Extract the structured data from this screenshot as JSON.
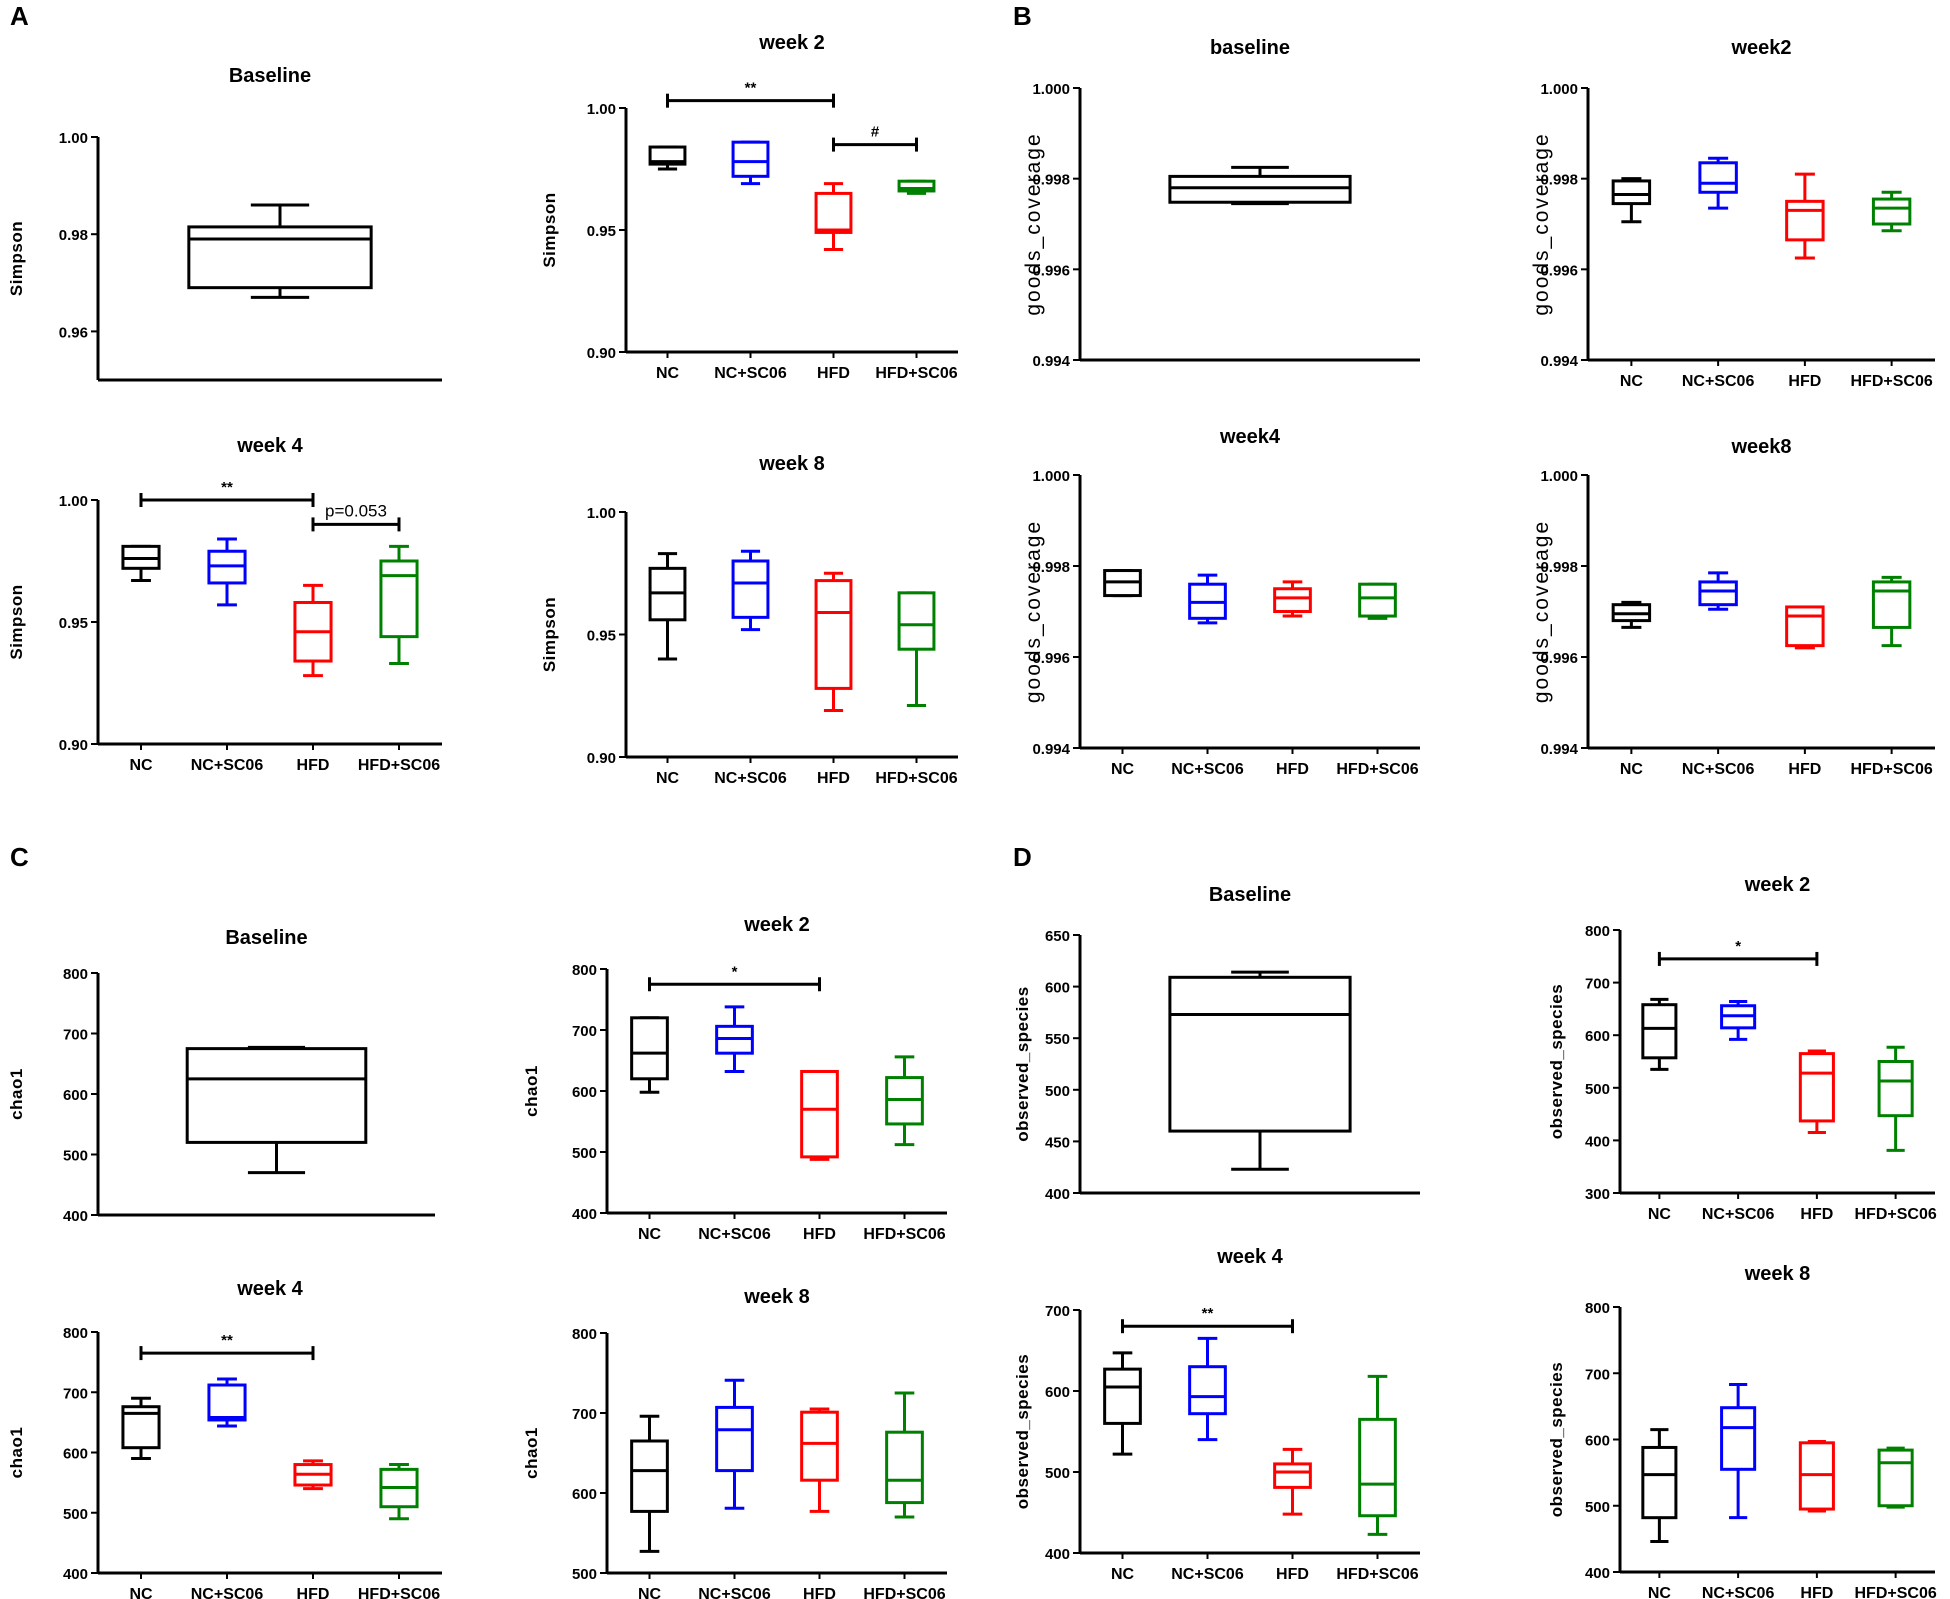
{
  "chart_data": [
    {
      "panel": "A",
      "title": "Baseline",
      "type": "box",
      "ylabel": "Simpson",
      "ylim": [
        0.95,
        1.0
      ],
      "yticks": [
        "0.96",
        "0.98",
        "1.00"
      ],
      "categories": [],
      "boxes": [
        {
          "group": "All",
          "min": 0.967,
          "q1": 0.969,
          "median": 0.979,
          "q3": 0.9815,
          "max": 0.986,
          "color": "#000000"
        }
      ],
      "annotations": []
    },
    {
      "panel": "A",
      "title": "week 2",
      "type": "box",
      "ylabel": "Simpson",
      "ylim": [
        0.9,
        1.0
      ],
      "yticks": [
        "0.90",
        "0.95",
        "1.00"
      ],
      "categories": [
        "NC",
        "NC+SC06",
        "HFD",
        "HFD+SC06"
      ],
      "boxes": [
        {
          "group": "NC",
          "min": 0.975,
          "q1": 0.977,
          "median": 0.978,
          "q3": 0.984,
          "max": 0.984,
          "color": "#000000"
        },
        {
          "group": "NC+SC06",
          "min": 0.969,
          "q1": 0.972,
          "median": 0.978,
          "q3": 0.986,
          "max": 0.986,
          "color": "#0000ff"
        },
        {
          "group": "HFD",
          "min": 0.942,
          "q1": 0.949,
          "median": 0.95,
          "q3": 0.965,
          "max": 0.969,
          "color": "#ff0000"
        },
        {
          "group": "HFD+SC06",
          "min": 0.965,
          "q1": 0.966,
          "median": 0.967,
          "q3": 0.97,
          "max": 0.97,
          "color": "#008000"
        }
      ],
      "annotations": [
        {
          "from": 0,
          "to": 2,
          "level": 1.003,
          "label": "**"
        },
        {
          "from": 2,
          "to": 3,
          "level": 0.985,
          "label": "#"
        }
      ]
    },
    {
      "panel": "A",
      "title": "week 4",
      "type": "box",
      "ylabel": "Simpson",
      "ylim": [
        0.9,
        1.0
      ],
      "yticks": [
        "0.90",
        "0.95",
        "1.00"
      ],
      "categories": [
        "NC",
        "NC+SC06",
        "HFD",
        "HFD+SC06"
      ],
      "boxes": [
        {
          "group": "NC",
          "min": 0.967,
          "q1": 0.972,
          "median": 0.976,
          "q3": 0.981,
          "max": 0.981,
          "color": "#000000"
        },
        {
          "group": "NC+SC06",
          "min": 0.957,
          "q1": 0.966,
          "median": 0.973,
          "q3": 0.979,
          "max": 0.984,
          "color": "#0000ff"
        },
        {
          "group": "HFD",
          "min": 0.928,
          "q1": 0.934,
          "median": 0.946,
          "q3": 0.958,
          "max": 0.965,
          "color": "#ff0000"
        },
        {
          "group": "HFD+SC06",
          "min": 0.933,
          "q1": 0.944,
          "median": 0.969,
          "q3": 0.975,
          "max": 0.981,
          "color": "#008000"
        }
      ],
      "annotations": [
        {
          "from": 0,
          "to": 2,
          "level": 1.0,
          "label": "**"
        },
        {
          "from": 2,
          "to": 3,
          "level": 0.99,
          "label": "p=0.053"
        }
      ]
    },
    {
      "panel": "A",
      "title": "week 8",
      "type": "box",
      "ylabel": "Simpson",
      "ylim": [
        0.9,
        1.0
      ],
      "yticks": [
        "0.90",
        "0.95",
        "1.00"
      ],
      "categories": [
        "NC",
        "NC+SC06",
        "HFD",
        "HFD+SC06"
      ],
      "boxes": [
        {
          "group": "NC",
          "min": 0.94,
          "q1": 0.956,
          "median": 0.967,
          "q3": 0.977,
          "max": 0.983,
          "color": "#000000"
        },
        {
          "group": "NC+SC06",
          "min": 0.952,
          "q1": 0.957,
          "median": 0.971,
          "q3": 0.98,
          "max": 0.984,
          "color": "#0000ff"
        },
        {
          "group": "HFD",
          "min": 0.919,
          "q1": 0.928,
          "median": 0.959,
          "q3": 0.972,
          "max": 0.975,
          "color": "#ff0000"
        },
        {
          "group": "HFD+SC06",
          "min": 0.921,
          "q1": 0.944,
          "median": 0.954,
          "q3": 0.967,
          "max": 0.967,
          "color": "#008000"
        }
      ],
      "annotations": []
    },
    {
      "panel": "B",
      "title": "baseline",
      "type": "box",
      "ylabel": "goods_coverage",
      "ylim": [
        0.994,
        1.0
      ],
      "yticks": [
        "0.994",
        "0.996",
        "0.998",
        "1.000"
      ],
      "categories": [],
      "boxes": [
        {
          "group": "All",
          "min": 0.99745,
          "q1": 0.99748,
          "median": 0.9978,
          "q3": 0.99805,
          "max": 0.99825,
          "color": "#000000"
        }
      ],
      "annotations": []
    },
    {
      "panel": "B",
      "title": "week2",
      "type": "box",
      "ylabel": "goods_coverage",
      "ylim": [
        0.994,
        1.0
      ],
      "yticks": [
        "0.994",
        "0.996",
        "0.998",
        "1.000"
      ],
      "categories": [
        "NC",
        "NC+SC06",
        "HFD",
        "HFD+SC06"
      ],
      "boxes": [
        {
          "group": "NC",
          "min": 0.99705,
          "q1": 0.99745,
          "median": 0.99765,
          "q3": 0.99795,
          "max": 0.998,
          "color": "#000000"
        },
        {
          "group": "NC+SC06",
          "min": 0.99735,
          "q1": 0.9977,
          "median": 0.9979,
          "q3": 0.99835,
          "max": 0.99845,
          "color": "#0000ff"
        },
        {
          "group": "HFD",
          "min": 0.99625,
          "q1": 0.99665,
          "median": 0.9973,
          "q3": 0.9975,
          "max": 0.9981,
          "color": "#ff0000"
        },
        {
          "group": "HFD+SC06",
          "min": 0.99685,
          "q1": 0.997,
          "median": 0.99735,
          "q3": 0.99755,
          "max": 0.9977,
          "color": "#008000"
        }
      ],
      "annotations": []
    },
    {
      "panel": "B",
      "title": "week4",
      "type": "box",
      "ylabel": "goods_coverage",
      "ylim": [
        0.994,
        1.0
      ],
      "yticks": [
        "0.994",
        "0.996",
        "0.998",
        "1.000"
      ],
      "categories": [
        "NC",
        "NC+SC06",
        "HFD",
        "HFD+SC06"
      ],
      "boxes": [
        {
          "group": "NC",
          "min": 0.99735,
          "q1": 0.99735,
          "median": 0.99765,
          "q3": 0.9979,
          "max": 0.9979,
          "color": "#000000"
        },
        {
          "group": "NC+SC06",
          "min": 0.99675,
          "q1": 0.99685,
          "median": 0.9972,
          "q3": 0.9976,
          "max": 0.9978,
          "color": "#0000ff"
        },
        {
          "group": "HFD",
          "min": 0.9969,
          "q1": 0.997,
          "median": 0.9973,
          "q3": 0.9975,
          "max": 0.99765,
          "color": "#ff0000"
        },
        {
          "group": "HFD+SC06",
          "min": 0.99685,
          "q1": 0.9969,
          "median": 0.9973,
          "q3": 0.9976,
          "max": 0.9976,
          "color": "#008000"
        }
      ],
      "annotations": []
    },
    {
      "panel": "B",
      "title": "week8",
      "type": "box",
      "ylabel": "goods_coverage",
      "ylim": [
        0.994,
        1.0
      ],
      "yticks": [
        "0.994",
        "0.996",
        "0.998",
        "1.000"
      ],
      "categories": [
        "NC",
        "NC+SC06",
        "HFD",
        "HFD+SC06"
      ],
      "boxes": [
        {
          "group": "NC",
          "min": 0.99665,
          "q1": 0.9968,
          "median": 0.99695,
          "q3": 0.99715,
          "max": 0.9972,
          "color": "#000000"
        },
        {
          "group": "NC+SC06",
          "min": 0.99705,
          "q1": 0.99715,
          "median": 0.99745,
          "q3": 0.99765,
          "max": 0.99785,
          "color": "#0000ff"
        },
        {
          "group": "HFD",
          "min": 0.9962,
          "q1": 0.99625,
          "median": 0.9969,
          "q3": 0.9971,
          "max": 0.9971,
          "color": "#ff0000"
        },
        {
          "group": "HFD+SC06",
          "min": 0.99625,
          "q1": 0.99665,
          "median": 0.99745,
          "q3": 0.99765,
          "max": 0.99775,
          "color": "#008000"
        }
      ],
      "annotations": []
    },
    {
      "panel": "C",
      "title": "Baseline",
      "type": "box",
      "ylabel": "chao1",
      "ylim": [
        400,
        800
      ],
      "yticks": [
        "400",
        "500",
        "600",
        "700",
        "800"
      ],
      "categories": [],
      "boxes": [
        {
          "group": "All",
          "min": 470,
          "q1": 520,
          "median": 625,
          "q3": 675,
          "max": 677,
          "color": "#000000"
        }
      ],
      "annotations": []
    },
    {
      "panel": "C",
      "title": "week 2",
      "type": "box",
      "ylabel": "chao1",
      "ylim": [
        400,
        800
      ],
      "yticks": [
        "400",
        "500",
        "600",
        "700",
        "800"
      ],
      "categories": [
        "NC",
        "NC+SC06",
        "HFD",
        "HFD+SC06"
      ],
      "boxes": [
        {
          "group": "NC",
          "min": 598,
          "q1": 620,
          "median": 662,
          "q3": 720,
          "max": 720,
          "color": "#000000"
        },
        {
          "group": "NC+SC06",
          "min": 632,
          "q1": 662,
          "median": 686,
          "q3": 706,
          "max": 738,
          "color": "#0000ff"
        },
        {
          "group": "HFD",
          "min": 488,
          "q1": 492,
          "median": 570,
          "q3": 632,
          "max": 632,
          "color": "#ff0000"
        },
        {
          "group": "HFD+SC06",
          "min": 512,
          "q1": 546,
          "median": 586,
          "q3": 622,
          "max": 656,
          "color": "#008000"
        }
      ],
      "annotations": [
        {
          "from": 0,
          "to": 2,
          "level": 775,
          "label": "*"
        }
      ]
    },
    {
      "panel": "C",
      "title": "week 4",
      "type": "box",
      "ylabel": "chao1",
      "ylim": [
        400,
        800
      ],
      "yticks": [
        "400",
        "500",
        "600",
        "700",
        "800"
      ],
      "categories": [
        "NC",
        "NC+SC06",
        "HFD",
        "HFD+SC06"
      ],
      "boxes": [
        {
          "group": "NC",
          "min": 590,
          "q1": 608,
          "median": 665,
          "q3": 676,
          "max": 690,
          "color": "#000000"
        },
        {
          "group": "NC+SC06",
          "min": 644,
          "q1": 654,
          "median": 658,
          "q3": 712,
          "max": 722,
          "color": "#0000ff"
        },
        {
          "group": "HFD",
          "min": 540,
          "q1": 546,
          "median": 564,
          "q3": 580,
          "max": 586,
          "color": "#ff0000"
        },
        {
          "group": "HFD+SC06",
          "min": 490,
          "q1": 510,
          "median": 542,
          "q3": 572,
          "max": 580,
          "color": "#008000"
        }
      ],
      "annotations": [
        {
          "from": 0,
          "to": 2,
          "level": 765,
          "label": "**"
        }
      ]
    },
    {
      "panel": "C",
      "title": "week 8",
      "type": "box",
      "ylabel": "chao1",
      "ylim": [
        500,
        800
      ],
      "yticks": [
        "500",
        "600",
        "700",
        "800"
      ],
      "categories": [
        "NC",
        "NC+SC06",
        "HFD",
        "HFD+SC06"
      ],
      "boxes": [
        {
          "group": "NC",
          "min": 527,
          "q1": 577,
          "median": 628,
          "q3": 665,
          "max": 696,
          "color": "#000000"
        },
        {
          "group": "NC+SC06",
          "min": 581,
          "q1": 628,
          "median": 679,
          "q3": 707,
          "max": 741,
          "color": "#0000ff"
        },
        {
          "group": "HFD",
          "min": 577,
          "q1": 616,
          "median": 662,
          "q3": 701,
          "max": 705,
          "color": "#ff0000"
        },
        {
          "group": "HFD+SC06",
          "min": 570,
          "q1": 588,
          "median": 616,
          "q3": 676,
          "max": 725,
          "color": "#008000"
        }
      ],
      "annotations": []
    },
    {
      "panel": "D",
      "title": "Baseline",
      "type": "box",
      "ylabel": "observed_species",
      "ylim": [
        400,
        650
      ],
      "yticks": [
        "400",
        "450",
        "500",
        "550",
        "600",
        "650"
      ],
      "categories": [],
      "boxes": [
        {
          "group": "All",
          "min": 423,
          "q1": 460,
          "median": 573,
          "q3": 609,
          "max": 614,
          "color": "#000000"
        }
      ],
      "annotations": []
    },
    {
      "panel": "D",
      "title": "week 2",
      "type": "box",
      "ylabel": "observed_species",
      "ylim": [
        300,
        800
      ],
      "yticks": [
        "300",
        "400",
        "500",
        "600",
        "700",
        "800"
      ],
      "categories": [
        "NC",
        "NC+SC06",
        "HFD",
        "HFD+SC06"
      ],
      "boxes": [
        {
          "group": "NC",
          "min": 535,
          "q1": 557,
          "median": 613,
          "q3": 658,
          "max": 668,
          "color": "#000000"
        },
        {
          "group": "NC+SC06",
          "min": 592,
          "q1": 614,
          "median": 637,
          "q3": 656,
          "max": 664,
          "color": "#0000ff"
        },
        {
          "group": "HFD",
          "min": 415,
          "q1": 437,
          "median": 528,
          "q3": 565,
          "max": 570,
          "color": "#ff0000"
        },
        {
          "group": "HFD+SC06",
          "min": 381,
          "q1": 447,
          "median": 513,
          "q3": 550,
          "max": 577,
          "color": "#008000"
        }
      ],
      "annotations": [
        {
          "from": 0,
          "to": 2,
          "level": 745,
          "label": "*"
        }
      ]
    },
    {
      "panel": "D",
      "title": "week 4",
      "type": "box",
      "ylabel": "observed_species",
      "ylim": [
        400,
        700
      ],
      "yticks": [
        "400",
        "500",
        "600",
        "700"
      ],
      "categories": [
        "NC",
        "NC+SC06",
        "HFD",
        "HFD+SC06"
      ],
      "boxes": [
        {
          "group": "NC",
          "min": 522,
          "q1": 560,
          "median": 605,
          "q3": 627,
          "max": 647,
          "color": "#000000"
        },
        {
          "group": "NC+SC06",
          "min": 540,
          "q1": 572,
          "median": 593,
          "q3": 630,
          "max": 665,
          "color": "#0000ff"
        },
        {
          "group": "HFD",
          "min": 448,
          "q1": 481,
          "median": 500,
          "q3": 510,
          "max": 528,
          "color": "#ff0000"
        },
        {
          "group": "HFD+SC06",
          "min": 423,
          "q1": 446,
          "median": 485,
          "q3": 565,
          "max": 618,
          "color": "#008000"
        }
      ],
      "annotations": [
        {
          "from": 0,
          "to": 2,
          "level": 680,
          "label": "**"
        }
      ]
    },
    {
      "panel": "D",
      "title": "week 8",
      "type": "box",
      "ylabel": "observed_species",
      "ylim": [
        400,
        800
      ],
      "yticks": [
        "400",
        "500",
        "600",
        "700",
        "800"
      ],
      "categories": [
        "NC",
        "NC+SC06",
        "HFD",
        "HFD+SC06"
      ],
      "boxes": [
        {
          "group": "NC",
          "min": 446,
          "q1": 482,
          "median": 547,
          "q3": 588,
          "max": 615,
          "color": "#000000"
        },
        {
          "group": "NC+SC06",
          "min": 482,
          "q1": 555,
          "median": 618,
          "q3": 648,
          "max": 683,
          "color": "#0000ff"
        },
        {
          "group": "HFD",
          "min": 492,
          "q1": 495,
          "median": 547,
          "q3": 595,
          "max": 597,
          "color": "#ff0000"
        },
        {
          "group": "HFD+SC06",
          "min": 498,
          "q1": 500,
          "median": 565,
          "q3": 584,
          "max": 587,
          "color": "#008000"
        }
      ],
      "annotations": []
    }
  ],
  "panel_labels": [
    "A",
    "B",
    "C",
    "D"
  ]
}
